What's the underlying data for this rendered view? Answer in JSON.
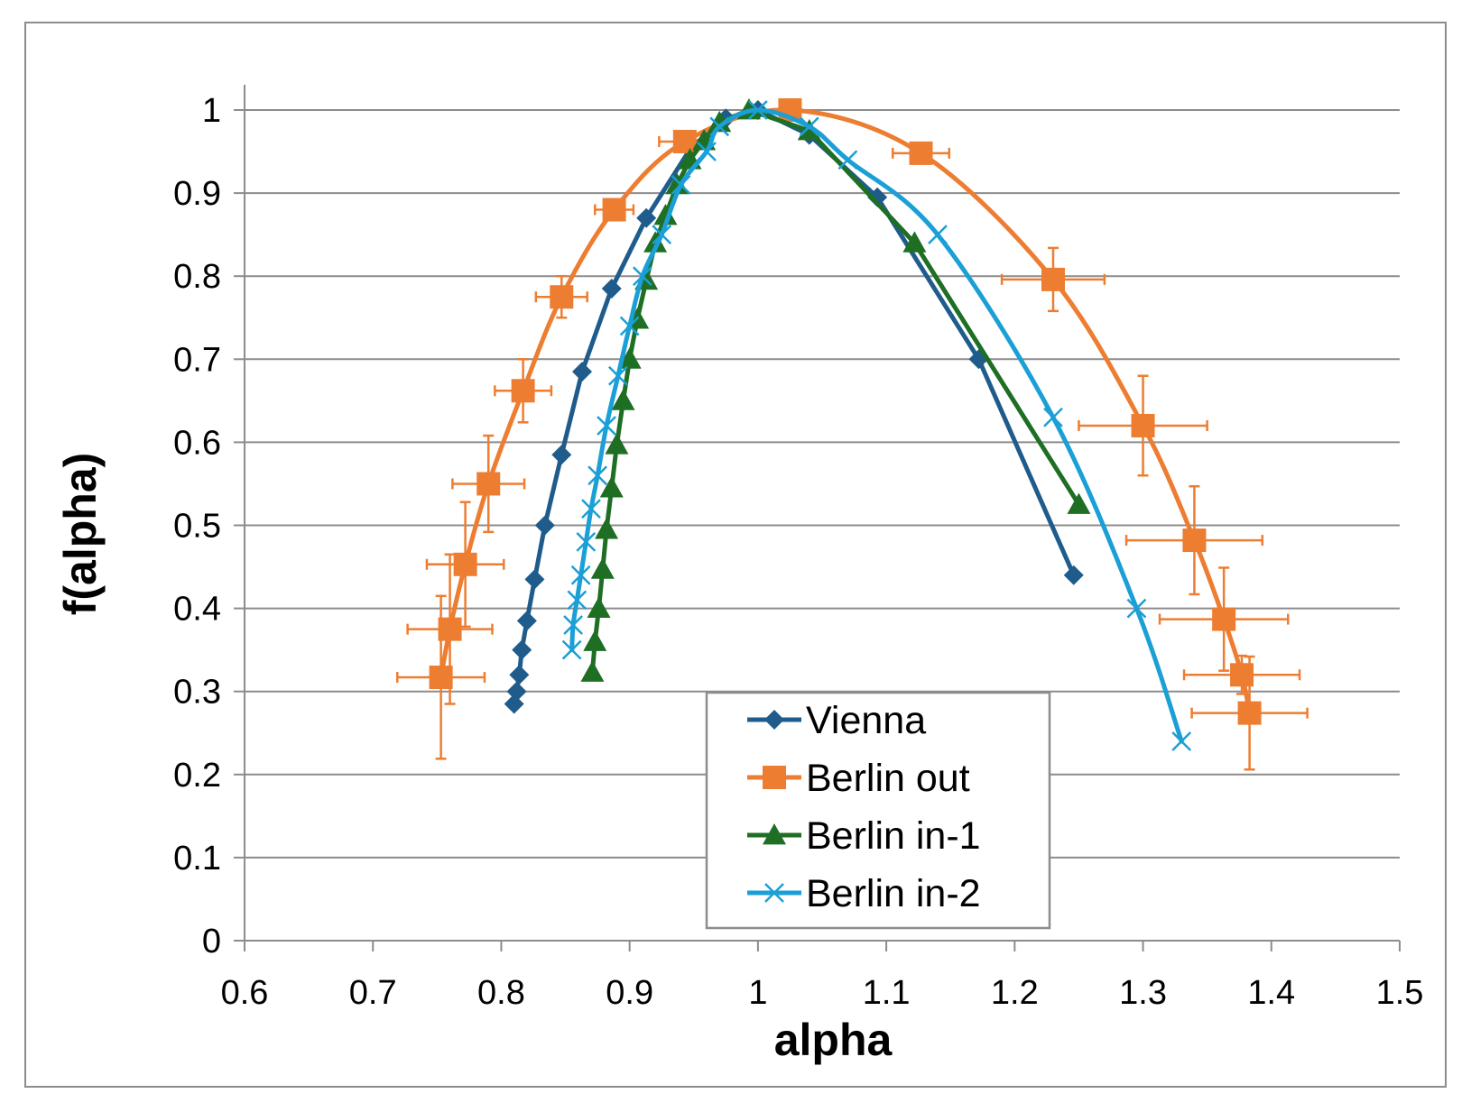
{
  "chart_data": {
    "type": "scatter",
    "title": "",
    "xlabel": "alpha",
    "ylabel": "f(alpha)",
    "xlim": [
      0.6,
      1.5
    ],
    "ylim": [
      0,
      1.05
    ],
    "x_ticks": [
      "0.6",
      "0.7",
      "0.8",
      "0.9",
      "1",
      "1.1",
      "1.2",
      "1.3",
      "1.4",
      "1.5"
    ],
    "y_ticks": [
      "0",
      "0.1",
      "0.2",
      "0.3",
      "0.4",
      "0.5",
      "0.6",
      "0.7",
      "0.8",
      "0.9",
      "1"
    ],
    "grid": "horizontal",
    "legend": "bottom-center",
    "series": [
      {
        "name": "Vienna",
        "color": "#1F5C8C",
        "marker": "diamond",
        "smooth": false,
        "points": [
          [
            0.81,
            0.285
          ],
          [
            0.812,
            0.3
          ],
          [
            0.814,
            0.32
          ],
          [
            0.816,
            0.35
          ],
          [
            0.82,
            0.385
          ],
          [
            0.826,
            0.435
          ],
          [
            0.834,
            0.5
          ],
          [
            0.847,
            0.585
          ],
          [
            0.863,
            0.685
          ],
          [
            0.886,
            0.785
          ],
          [
            0.913,
            0.87
          ],
          [
            0.948,
            0.955
          ],
          [
            0.975,
            0.99
          ],
          [
            1.0,
            1.0
          ],
          [
            1.04,
            0.97
          ],
          [
            1.093,
            0.895
          ],
          [
            1.172,
            0.7
          ],
          [
            1.246,
            0.44
          ]
        ]
      },
      {
        "name": "Berlin out",
        "color": "#ED7D31",
        "marker": "square",
        "smooth": true,
        "error_bars": true,
        "points": [
          [
            0.753,
            0.317
          ],
          [
            0.76,
            0.375
          ],
          [
            0.772,
            0.453
          ],
          [
            0.79,
            0.55
          ],
          [
            0.817,
            0.662
          ],
          [
            0.847,
            0.775
          ],
          [
            0.888,
            0.88
          ],
          [
            0.943,
            0.962
          ],
          [
            1.025,
            1.0
          ],
          [
            1.127,
            0.948
          ],
          [
            1.23,
            0.796
          ],
          [
            1.3,
            0.62
          ],
          [
            1.34,
            0.482
          ],
          [
            1.363,
            0.387
          ],
          [
            1.377,
            0.32
          ],
          [
            1.383,
            0.274
          ]
        ],
        "x_err": [
          0.034,
          0.033,
          0.03,
          0.028,
          0.022,
          0.02,
          0.015,
          0.02,
          0.0,
          0.022,
          0.04,
          0.05,
          0.053,
          0.05,
          0.045,
          0.045
        ],
        "y_err": [
          0.098,
          0.09,
          0.075,
          0.058,
          0.038,
          0.025,
          0.012,
          0.008,
          0.0,
          0.012,
          0.038,
          0.06,
          0.065,
          0.062,
          0.023,
          0.068
        ]
      },
      {
        "name": "Berlin in-1",
        "color": "#1E6E24",
        "marker": "triangle",
        "smooth": false,
        "points": [
          [
            0.871,
            0.323
          ],
          [
            0.873,
            0.36
          ],
          [
            0.876,
            0.4
          ],
          [
            0.879,
            0.447
          ],
          [
            0.882,
            0.495
          ],
          [
            0.886,
            0.545
          ],
          [
            0.89,
            0.597
          ],
          [
            0.895,
            0.65
          ],
          [
            0.9,
            0.7
          ],
          [
            0.906,
            0.748
          ],
          [
            0.913,
            0.795
          ],
          [
            0.92,
            0.84
          ],
          [
            0.928,
            0.873
          ],
          [
            0.937,
            0.91
          ],
          [
            0.947,
            0.94
          ],
          [
            0.958,
            0.963
          ],
          [
            0.97,
            0.985
          ],
          [
            0.993,
            1.0
          ],
          [
            1.04,
            0.975
          ],
          [
            1.122,
            0.84
          ],
          [
            1.25,
            0.525
          ]
        ]
      },
      {
        "name": "Berlin in-2",
        "color": "#1A9FD6",
        "marker": "x",
        "smooth": true,
        "points": [
          [
            0.855,
            0.35
          ],
          [
            0.856,
            0.38
          ],
          [
            0.859,
            0.41
          ],
          [
            0.862,
            0.44
          ],
          [
            0.866,
            0.48
          ],
          [
            0.87,
            0.52
          ],
          [
            0.875,
            0.56
          ],
          [
            0.882,
            0.62
          ],
          [
            0.891,
            0.68
          ],
          [
            0.9,
            0.74
          ],
          [
            0.91,
            0.8
          ],
          [
            0.925,
            0.85
          ],
          [
            0.94,
            0.91
          ],
          [
            0.96,
            0.95
          ],
          [
            0.97,
            0.98
          ],
          [
            1.0,
            1.0
          ],
          [
            1.04,
            0.98
          ],
          [
            1.07,
            0.94
          ],
          [
            1.14,
            0.85
          ],
          [
            1.23,
            0.63
          ],
          [
            1.295,
            0.4
          ],
          [
            1.33,
            0.24
          ]
        ]
      }
    ]
  }
}
